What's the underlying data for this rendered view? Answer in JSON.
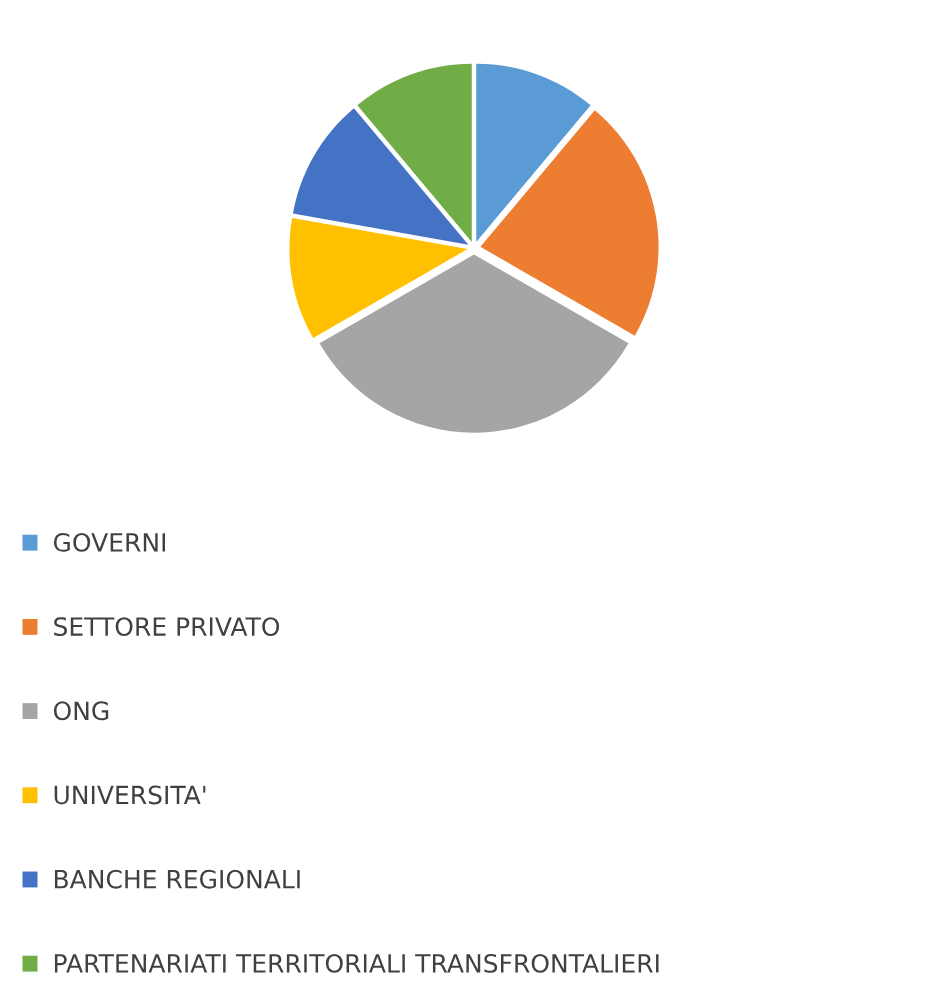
{
  "chart_data": {
    "type": "pie",
    "categories": [
      "GOVERNI",
      "SETTORE PRIVATO",
      "ONG",
      "UNIVERSITA'",
      "BANCHE REGIONALI",
      "PARTENARIATI TERRITORIALI TRANSFRONTALIERI"
    ],
    "values": [
      11.1,
      22.2,
      33.4,
      11.1,
      11.1,
      11.1
    ],
    "colors": [
      "#5b9bd5",
      "#ed7d31",
      "#a5a5a5",
      "#ffc000",
      "#4472c4",
      "#70ad47"
    ],
    "legend": "bottom"
  }
}
